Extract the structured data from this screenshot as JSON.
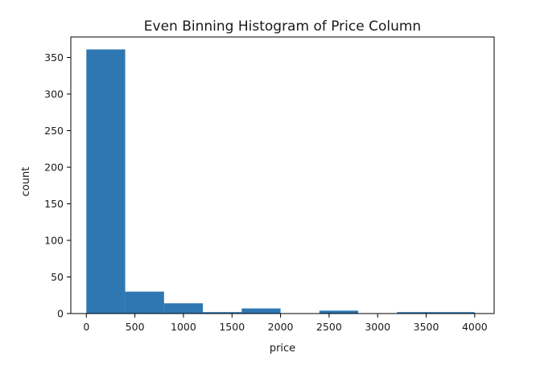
{
  "chart_data": {
    "type": "bar",
    "title": "Even Binning Histogram of Price Column",
    "xlabel": "price",
    "ylabel": "count",
    "xlim": [
      -160,
      4200
    ],
    "ylim": [
      0,
      378
    ],
    "x_ticks": [
      "0",
      "500",
      "1000",
      "1500",
      "2000",
      "2500",
      "3000",
      "3500",
      "4000"
    ],
    "y_ticks": [
      "0",
      "50",
      "100",
      "150",
      "200",
      "250",
      "300",
      "350"
    ],
    "bins": [
      {
        "start": 0,
        "end": 400,
        "count": 361
      },
      {
        "start": 400,
        "end": 800,
        "count": 30
      },
      {
        "start": 800,
        "end": 1200,
        "count": 14
      },
      {
        "start": 1200,
        "end": 1600,
        "count": 2
      },
      {
        "start": 1600,
        "end": 2000,
        "count": 7
      },
      {
        "start": 2000,
        "end": 2400,
        "count": 0
      },
      {
        "start": 2400,
        "end": 2800,
        "count": 4
      },
      {
        "start": 2800,
        "end": 3200,
        "count": 0
      },
      {
        "start": 3200,
        "end": 3600,
        "count": 2
      },
      {
        "start": 3600,
        "end": 4000,
        "count": 2
      }
    ],
    "bar_color": "#2e77b3",
    "grid": false,
    "legend": "none"
  }
}
